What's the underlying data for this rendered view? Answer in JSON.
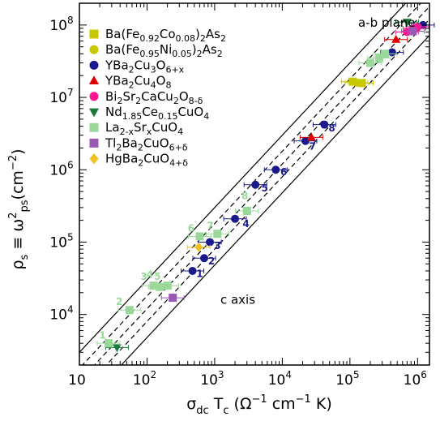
{
  "chart_data": {
    "type": "scatter",
    "title": "",
    "xlabel_parts": [
      "σ",
      "dc",
      " T",
      "c",
      " (Ω",
      "−1",
      " cm",
      "−1",
      " K)"
    ],
    "ylabel_parts": [
      "ρ",
      "s",
      " ≡ ω",
      "2",
      "ps",
      "(cm",
      "−2",
      ")"
    ],
    "x_scale": "log",
    "y_scale": "log",
    "xlim": [
      10,
      1500000
    ],
    "ylim": [
      2000,
      200000000
    ],
    "x_ticks": [
      10,
      100,
      1000,
      10000,
      100000,
      1000000
    ],
    "x_tick_labels": [
      {
        "base": "10",
        "exp": ""
      },
      {
        "base": "10",
        "exp": "2"
      },
      {
        "base": "10",
        "exp": "3"
      },
      {
        "base": "10",
        "exp": "4"
      },
      {
        "base": "10",
        "exp": "5"
      },
      {
        "base": "10",
        "exp": "6"
      }
    ],
    "y_ticks": [
      10000,
      100000,
      1000000,
      10000000,
      100000000
    ],
    "y_tick_labels": [
      {
        "base": "10",
        "exp": "4"
      },
      {
        "base": "10",
        "exp": "5"
      },
      {
        "base": "10",
        "exp": "6"
      },
      {
        "base": "10",
        "exp": "7"
      },
      {
        "base": "10",
        "exp": "8"
      }
    ],
    "grid": false,
    "legend_position": "top-left",
    "annotations": [
      {
        "text": "a-b plane",
        "x": 350000,
        "y": 95000000
      },
      {
        "text": "c axis",
        "x": 2200,
        "y": 14000
      }
    ],
    "reference_lines": {
      "center_line": {
        "a": 120,
        "exp": 1
      },
      "inner_band_factor": 1.5,
      "outer_band_factor": 2.5
    },
    "series": [
      {
        "name": [
          {
            "t": "Ba(Fe"
          },
          {
            "t": "0.92",
            "sub": true
          },
          {
            "t": "Co"
          },
          {
            "t": "0.08",
            "sub": true
          },
          {
            "t": ")"
          },
          {
            "t": "2",
            "sub": true
          },
          {
            "t": "As"
          },
          {
            "t": "2",
            "sub": true
          }
        ],
        "marker": "square",
        "color": "#c8c800",
        "points": [
          [
            110000,
            16500000
          ],
          [
            150000,
            15800000
          ]
        ]
      },
      {
        "name": [
          {
            "t": "Ba(Fe"
          },
          {
            "t": "0.95",
            "sub": true
          },
          {
            "t": "Ni"
          },
          {
            "t": "0.05",
            "sub": true
          },
          {
            "t": ")"
          },
          {
            "t": "2",
            "sub": true
          },
          {
            "t": "As"
          },
          {
            "t": "2",
            "sub": true
          }
        ],
        "marker": "circle",
        "color": "#c8c800",
        "points": [
          [
            125000,
            16000000
          ]
        ]
      },
      {
        "name": [
          {
            "t": "YBa"
          },
          {
            "t": "2",
            "sub": true
          },
          {
            "t": "Cu"
          },
          {
            "t": "3",
            "sub": true
          },
          {
            "t": "O"
          },
          {
            "t": "6+x",
            "sub": true
          }
        ],
        "marker": "circle",
        "color": "#1a1a8c",
        "points": [
          [
            470,
            40000
          ],
          [
            700,
            60000
          ],
          [
            850,
            100000
          ],
          [
            2000,
            210000
          ],
          [
            4000,
            620000
          ],
          [
            8000,
            1000000
          ],
          [
            22000,
            2500000
          ],
          [
            42000,
            4200000
          ],
          [
            420000,
            42000000
          ],
          [
            1200000,
            100000000
          ]
        ]
      },
      {
        "name": [
          {
            "t": "YBa"
          },
          {
            "t": "2",
            "sub": true
          },
          {
            "t": "Cu"
          },
          {
            "t": "4",
            "sub": true
          },
          {
            "t": "O"
          },
          {
            "t": "8",
            "sub": true
          }
        ],
        "marker": "triangle-up",
        "color": "#e00000",
        "points": [
          [
            27000,
            2800000
          ],
          [
            480000,
            63000000
          ]
        ]
      },
      {
        "name": [
          {
            "t": "Bi"
          },
          {
            "t": "2",
            "sub": true
          },
          {
            "t": "Sr"
          },
          {
            "t": "2",
            "sub": true
          },
          {
            "t": "CaCu"
          },
          {
            "t": "2",
            "sub": true
          },
          {
            "t": "O"
          },
          {
            "t": "8-δ",
            "sub": true
          }
        ],
        "marker": "circle",
        "color": "#ff1493",
        "points": [
          [
            700000,
            80000000
          ],
          [
            900000,
            90000000
          ],
          [
            1000000,
            95000000
          ]
        ]
      },
      {
        "name": [
          {
            "t": "Nd"
          },
          {
            "t": "1.85",
            "sub": true
          },
          {
            "t": "Ce"
          },
          {
            "t": "0.15",
            "sub": true
          },
          {
            "t": "CuO"
          },
          {
            "t": "4",
            "sub": true
          }
        ],
        "marker": "triangle-down",
        "color": "#1a7a3a",
        "points": [
          [
            36,
            3500
          ],
          [
            700000,
            110000000
          ]
        ]
      },
      {
        "name": [
          {
            "t": "La"
          },
          {
            "t": "2-x",
            "sub": true
          },
          {
            "t": "Sr"
          },
          {
            "t": "x",
            "sub": true
          },
          {
            "t": "CuO"
          },
          {
            "t": "4",
            "sub": true
          }
        ],
        "marker": "square",
        "color": "#9ad89a",
        "points": [
          [
            27,
            4000
          ],
          [
            55,
            11500
          ],
          [
            125,
            25000
          ],
          [
            155,
            24000
          ],
          [
            200,
            25000
          ],
          [
            600,
            120000
          ],
          [
            1100,
            130000
          ],
          [
            3000,
            270000
          ],
          [
            200000,
            30000000
          ],
          [
            270000,
            35000000
          ],
          [
            330000,
            40000000
          ]
        ]
      },
      {
        "name": [
          {
            "t": "Tl"
          },
          {
            "t": "2",
            "sub": true
          },
          {
            "t": "Ba"
          },
          {
            "t": "2",
            "sub": true
          },
          {
            "t": "CuO"
          },
          {
            "t": "6+δ",
            "sub": true
          }
        ],
        "marker": "square",
        "color": "#9b59b6",
        "points": [
          [
            240,
            17000
          ],
          [
            850000,
            82000000
          ]
        ]
      },
      {
        "name": [
          {
            "t": "HgBa"
          },
          {
            "t": "2",
            "sub": true
          },
          {
            "t": "CuO"
          },
          {
            "t": "4+δ",
            "sub": true
          }
        ],
        "marker": "diamond",
        "color": "#f0c020",
        "points": [
          [
            580,
            85000
          ]
        ]
      }
    ],
    "number_labels": [
      {
        "text": "1",
        "x": 600,
        "y": 33000,
        "color": "#1a1a8c"
      },
      {
        "text": "2",
        "x": 900,
        "y": 49000,
        "color": "#1a1a8c"
      },
      {
        "text": "3",
        "x": 1100,
        "y": 80000,
        "color": "#1a1a8c"
      },
      {
        "text": "4",
        "x": 2900,
        "y": 160000,
        "color": "#1a1a8c"
      },
      {
        "text": "5",
        "x": 5500,
        "y": 500000,
        "color": "#1a1a8c"
      },
      {
        "text": "6",
        "x": 10500,
        "y": 840000,
        "color": "#1a1a8c"
      },
      {
        "text": "7",
        "x": 28000,
        "y": 1900000,
        "color": "#1a1a8c"
      },
      {
        "text": "8",
        "x": 54000,
        "y": 3400000,
        "color": "#1a1a8c"
      },
      {
        "text": "1",
        "x": 22,
        "y": 4600,
        "color": "#9ad89a"
      },
      {
        "text": "2",
        "x": 39,
        "y": 13500,
        "color": "#9ad89a"
      },
      {
        "text": "3",
        "x": 90,
        "y": 30000,
        "color": "#9ad89a"
      },
      {
        "text": "4",
        "x": 110,
        "y": 32000,
        "color": "#9ad89a"
      },
      {
        "text": "5",
        "x": 143,
        "y": 30000,
        "color": "#9ad89a"
      },
      {
        "text": "6",
        "x": 450,
        "y": 140000,
        "color": "#9ad89a"
      },
      {
        "text": "7",
        "x": 860,
        "y": 150000,
        "color": "#9ad89a"
      },
      {
        "text": "8",
        "x": 2800,
        "y": 390000,
        "color": "#9ad89a"
      }
    ]
  }
}
